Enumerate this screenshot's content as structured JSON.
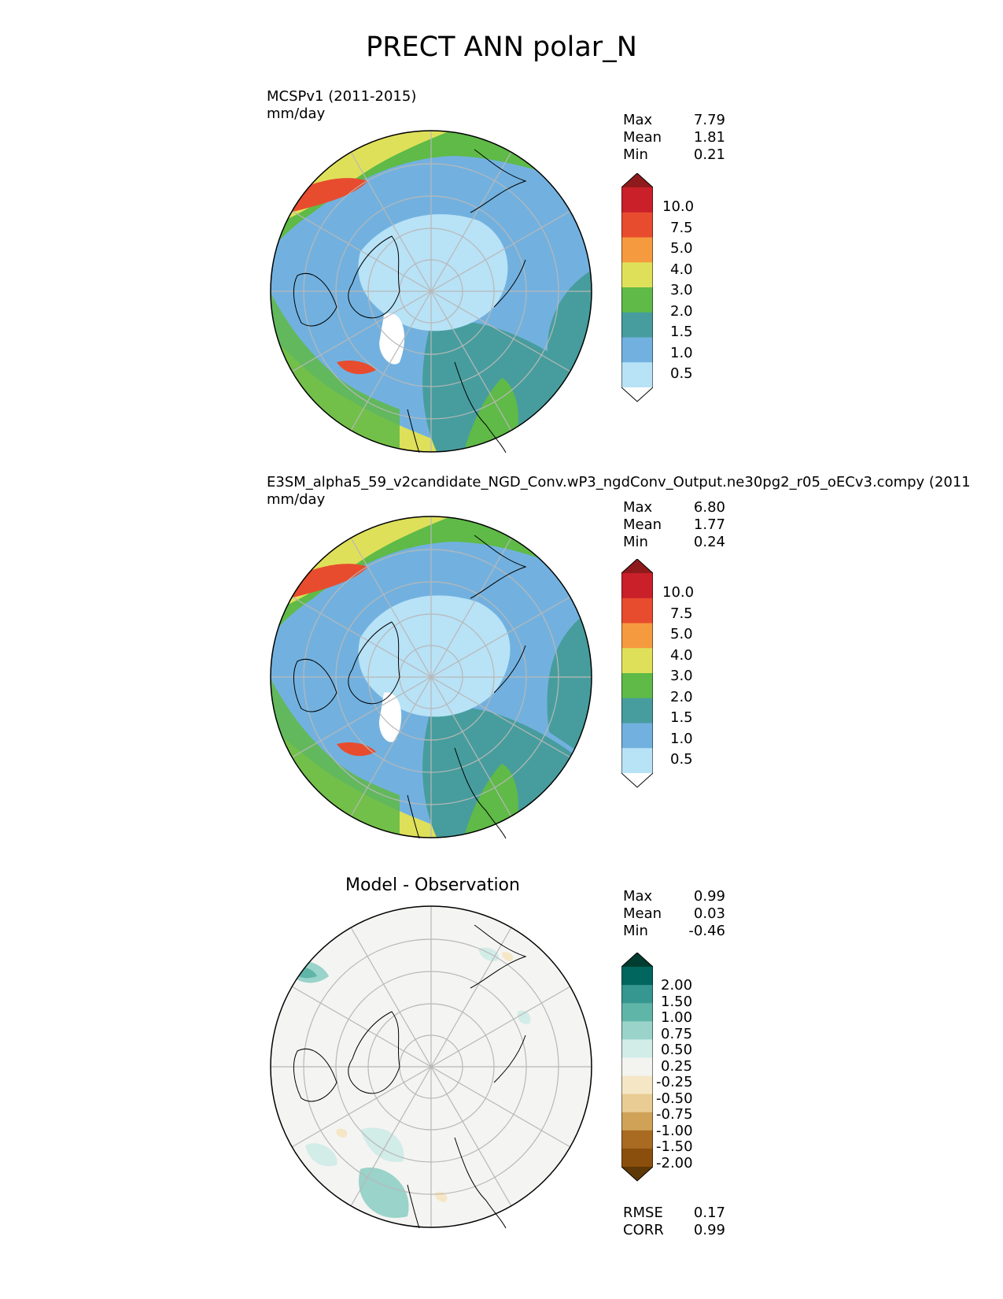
{
  "title": "PRECT ANN polar_N",
  "panels": [
    {
      "label_line1": "MCSPv1 (2011-2015)",
      "label_line2": "mm/day",
      "stats": [
        {
          "label": "Max",
          "value": "7.79"
        },
        {
          "label": "Mean",
          "value": "1.81"
        },
        {
          "label": "Min",
          "value": "0.21"
        }
      ]
    },
    {
      "label_line1": "E3SM_alpha5_59_v2candidate_NGD_Conv.wP3_ngdConv_Output.ne30pg2_r05_oECv3.compy (2011",
      "label_line2": "mm/day",
      "stats": [
        {
          "label": "Max",
          "value": "6.80"
        },
        {
          "label": "Mean",
          "value": "1.77"
        },
        {
          "label": "Min",
          "value": "0.24"
        }
      ]
    },
    {
      "title": "Model - Observation",
      "stats": [
        {
          "label": "Max",
          "value": "0.99"
        },
        {
          "label": "Mean",
          "value": "0.03"
        },
        {
          "label": "Min",
          "value": "-0.46"
        }
      ],
      "metrics": [
        {
          "label": "RMSE",
          "value": "0.17"
        },
        {
          "label": "CORR",
          "value": "0.99"
        }
      ]
    }
  ],
  "colorbar_main": {
    "tick_labels": [
      "10.0",
      "7.5",
      "5.0",
      "4.0",
      "3.0",
      "2.0",
      "1.5",
      "1.0",
      "0.5"
    ],
    "colors": [
      "#8f1a1c",
      "#c9202a",
      "#e84c2e",
      "#f69a40",
      "#dfe05a",
      "#5fba47",
      "#479d9d",
      "#72b1df",
      "#b8e2f6",
      "#ffffff"
    ]
  },
  "colorbar_diff": {
    "tick_labels": [
      "2.00",
      "1.50",
      "1.00",
      "0.75",
      "0.50",
      "0.25",
      "-0.25",
      "-0.50",
      "-0.75",
      "-1.00",
      "-1.50",
      "-2.00"
    ],
    "colors": [
      "#003c30",
      "#01665e",
      "#35978f",
      "#5fb5a8",
      "#99d3c9",
      "#d2ece8",
      "#f3f3f0",
      "#f5e7c6",
      "#e8cc94",
      "#cfa258",
      "#a96a22",
      "#8b4f0d",
      "#5e3806"
    ]
  }
}
